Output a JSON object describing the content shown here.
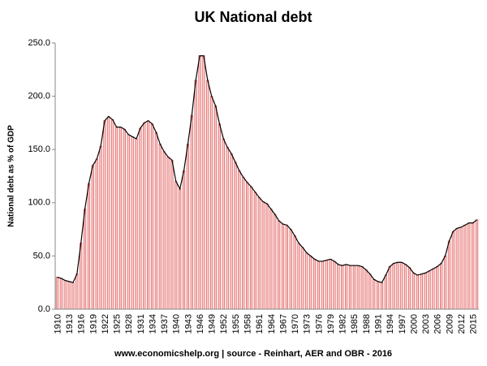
{
  "chart_data": {
    "type": "bar",
    "title": "UK National debt",
    "y_label": "National debt as % of GDP",
    "source": "www.economicshelp.org | source - Reinhart, AER and OBR - 2016",
    "categories": [
      "1910",
      null,
      null,
      "1913",
      null,
      null,
      "1916",
      null,
      null,
      "1919",
      null,
      null,
      "1922",
      null,
      null,
      "1925",
      null,
      null,
      "1928",
      null,
      null,
      "1931",
      null,
      null,
      "1934",
      null,
      null,
      "1937",
      null,
      null,
      "1940",
      null,
      null,
      "1943",
      null,
      null,
      "1946",
      null,
      null,
      "1949",
      null,
      null,
      "1952",
      null,
      null,
      "1955",
      null,
      null,
      "1958",
      null,
      null,
      "1961",
      null,
      null,
      "1964",
      null,
      null,
      "1967",
      null,
      null,
      "1970",
      null,
      null,
      "1973",
      null,
      null,
      "1976",
      null,
      null,
      "1979",
      null,
      null,
      "1982",
      null,
      null,
      "1985",
      null,
      null,
      "1988",
      null,
      null,
      "1991",
      null,
      null,
      "1994",
      null,
      null,
      "1997",
      null,
      null,
      "2000",
      null,
      null,
      "2003",
      null,
      null,
      "2006",
      null,
      null,
      "2009",
      null,
      null,
      "2012",
      null,
      null,
      "2015",
      null
    ],
    "values": [
      30,
      29,
      27,
      26,
      25,
      33,
      62,
      94,
      118,
      135,
      141,
      153,
      177,
      181,
      178,
      171,
      171,
      169,
      164,
      162,
      160,
      170,
      175,
      177,
      174,
      166,
      155,
      148,
      143,
      140,
      120,
      113,
      130,
      155,
      182,
      215,
      238,
      238,
      215,
      200,
      191,
      174,
      160,
      152,
      146,
      138,
      130,
      124,
      119,
      115,
      110,
      105,
      101,
      99,
      94,
      89,
      83,
      80,
      79,
      75,
      69,
      62,
      58,
      53,
      50,
      47,
      45,
      45,
      46,
      47,
      45,
      42,
      41,
      42,
      41,
      41,
      41,
      40,
      37,
      33,
      28,
      26,
      25,
      32,
      40,
      43,
      44,
      44,
      42,
      39,
      34,
      32,
      33,
      34,
      36,
      38,
      40,
      43,
      50,
      64,
      73,
      76,
      77,
      79,
      81,
      81,
      84
    ],
    "bar_fill": "#f9d4d4",
    "bar_edge": "#e05a5a",
    "line_color": "#000000",
    "ylim": [
      0,
      250
    ],
    "yticks": [
      {
        "value": 0,
        "label": "0.0"
      },
      {
        "value": 50,
        "label": "50.0"
      },
      {
        "value": 100,
        "label": "100.0"
      },
      {
        "value": 150,
        "label": "150.0"
      },
      {
        "value": 200,
        "label": "200.0"
      },
      {
        "value": 250,
        "label": "250.0"
      }
    ],
    "grid": false
  }
}
